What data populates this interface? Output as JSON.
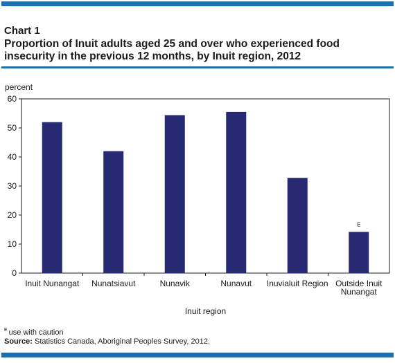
{
  "header": {
    "chart_number": "Chart 1",
    "title": "Proportion of Inuit adults aged 25 and over who experienced food insecurity in the previous 12 months, by Inuit region, 2012"
  },
  "footer": {
    "note_symbol": "E",
    "note_text": "use with caution",
    "source_label": "Source:",
    "source_text": "Statistics Canada, Aboriginal Peoples Survey, 2012."
  },
  "colors": {
    "bar": "#272a72",
    "rule": "#1a6fae"
  },
  "chart_data": {
    "type": "bar",
    "title": "Proportion of Inuit adults aged 25 and over who experienced food insecurity in the previous 12 months, by Inuit region, 2012",
    "xlabel": "Inuit region",
    "ylabel": "percent",
    "ylim": [
      0,
      60
    ],
    "yticks": [
      0,
      10,
      20,
      30,
      40,
      50,
      60
    ],
    "grid": false,
    "categories": [
      [
        "Inuit Nunangat"
      ],
      [
        "Nunatsiavut"
      ],
      [
        "Nunavik"
      ],
      [
        "Nunavut"
      ],
      [
        "Inuvialuit Region"
      ],
      [
        "Outside Inuit",
        "Nunangat"
      ]
    ],
    "values": [
      52,
      42,
      54.4,
      55.5,
      32.8,
      14.2
    ],
    "value_flags": [
      "",
      "",
      "",
      "",
      "",
      "E"
    ]
  }
}
